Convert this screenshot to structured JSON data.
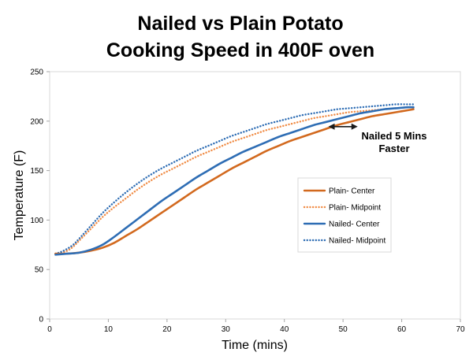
{
  "chart_data": {
    "type": "line",
    "title": [
      "Nailed vs Plain Potato",
      "Cooking Speed in 400F oven"
    ],
    "xlabel": "Time (mins)",
    "ylabel": "Temperature (F)",
    "xlim": [
      0,
      70
    ],
    "ylim": [
      0,
      250
    ],
    "xticks": [
      0,
      10,
      20,
      30,
      40,
      50,
      60,
      70
    ],
    "yticks": [
      0,
      50,
      100,
      150,
      200,
      250
    ],
    "grid": "none",
    "legend_position": "right",
    "series": [
      {
        "name": "Plain- Center",
        "color": "#D2691E",
        "style": "solid",
        "x": [
          1,
          3,
          5,
          7,
          9,
          11,
          13,
          15,
          17,
          19,
          21,
          23,
          25,
          27,
          29,
          31,
          33,
          35,
          37,
          39,
          41,
          43,
          45,
          47,
          49,
          51,
          53,
          55,
          57,
          59,
          61,
          62
        ],
        "y": [
          66,
          66,
          67,
          69,
          72,
          77,
          84,
          91,
          99,
          107,
          115,
          123,
          131,
          138,
          145,
          152,
          158,
          164,
          170,
          175,
          180,
          184,
          188,
          192,
          196,
          199,
          202,
          205,
          207,
          209,
          211,
          212
        ]
      },
      {
        "name": "Plain- Midpoint",
        "color": "#F08C46",
        "style": "dotted",
        "x": [
          1,
          2,
          3,
          4,
          5,
          7,
          9,
          11,
          13,
          15,
          17,
          19,
          21,
          23,
          25,
          27,
          29,
          31,
          33,
          35,
          37,
          39,
          41,
          43,
          45,
          47,
          49,
          51,
          53,
          55,
          57,
          59,
          61,
          62
        ],
        "y": [
          66,
          67,
          69,
          73,
          79,
          91,
          103,
          113,
          122,
          131,
          139,
          146,
          152,
          158,
          164,
          169,
          174,
          179,
          183,
          187,
          191,
          194,
          197,
          200,
          203,
          205,
          207,
          209,
          210,
          211,
          212,
          213,
          214,
          214
        ]
      },
      {
        "name": "Nailed- Center",
        "color": "#2E6DB4",
        "style": "solid",
        "x": [
          1,
          3,
          5,
          7,
          9,
          11,
          13,
          15,
          17,
          19,
          21,
          23,
          25,
          27,
          29,
          31,
          33,
          35,
          37,
          39,
          41,
          43,
          45,
          47,
          49,
          51,
          53,
          55,
          57,
          59,
          61,
          62
        ],
        "y": [
          65,
          66,
          67,
          70,
          75,
          83,
          92,
          101,
          110,
          119,
          127,
          135,
          143,
          150,
          157,
          163,
          169,
          174,
          179,
          184,
          188,
          192,
          196,
          199,
          202,
          205,
          208,
          210,
          212,
          213,
          214,
          214
        ]
      },
      {
        "name": "Nailed- Midpoint",
        "color": "#2E6DB4",
        "style": "dotted",
        "x": [
          1,
          2,
          3,
          4,
          5,
          7,
          9,
          11,
          13,
          15,
          17,
          19,
          21,
          23,
          25,
          27,
          29,
          31,
          33,
          35,
          37,
          39,
          41,
          43,
          45,
          47,
          49,
          51,
          53,
          55,
          57,
          59,
          61,
          62
        ],
        "y": [
          66,
          68,
          71,
          75,
          81,
          94,
          107,
          118,
          128,
          137,
          145,
          152,
          158,
          164,
          170,
          175,
          180,
          185,
          189,
          193,
          197,
          200,
          203,
          206,
          208,
          210,
          212,
          213,
          214,
          215,
          216,
          217,
          217,
          217
        ]
      }
    ],
    "annotations": [
      {
        "text": [
          "Nailed 5 Mins",
          "Faster"
        ],
        "arrow_x": [
          47.5,
          52.5
        ],
        "arrow_y": 200
      }
    ]
  }
}
